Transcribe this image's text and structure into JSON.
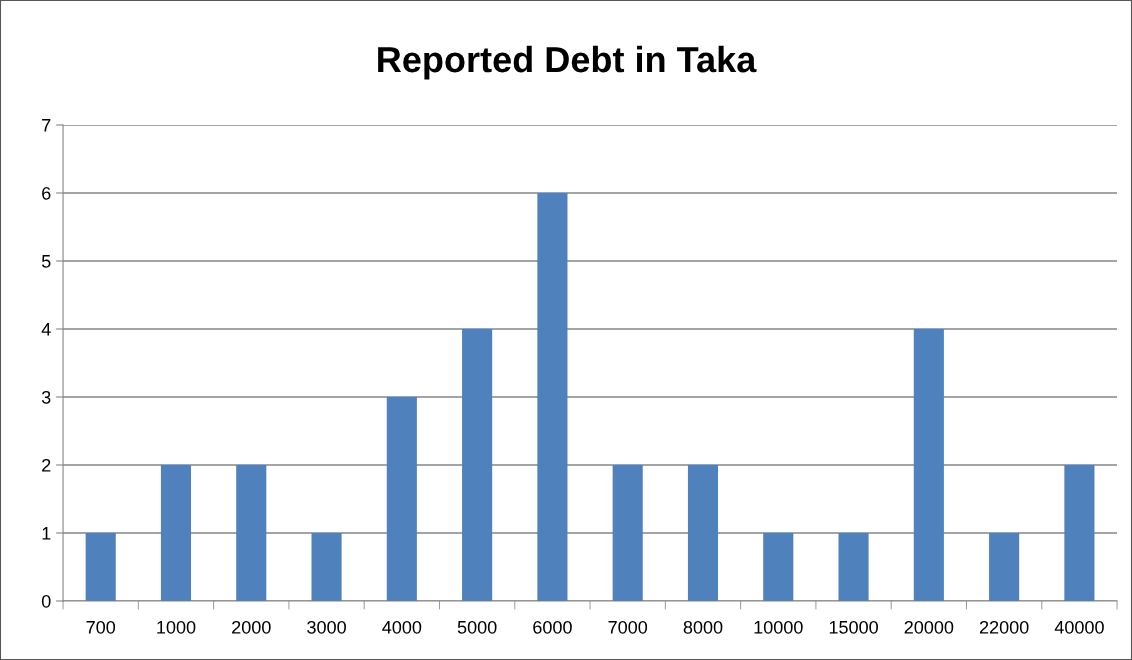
{
  "chart_data": {
    "type": "bar",
    "title": "Reported Debt in Taka",
    "categories": [
      "700",
      "1000",
      "2000",
      "3000",
      "4000",
      "5000",
      "6000",
      "7000",
      "8000",
      "10000",
      "15000",
      "20000",
      "22000",
      "40000"
    ],
    "values": [
      1,
      2,
      2,
      1,
      3,
      4,
      6,
      2,
      2,
      1,
      1,
      4,
      1,
      2
    ],
    "color": "#4f81bd",
    "ylim": [
      0,
      7
    ],
    "yticks": [
      0,
      1,
      2,
      3,
      4,
      5,
      6,
      7
    ],
    "grid": "y",
    "legend": false
  }
}
